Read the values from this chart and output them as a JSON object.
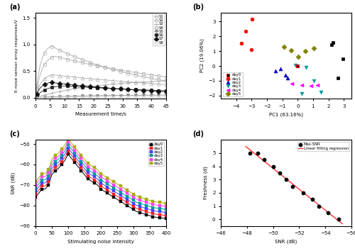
{
  "panel_labels": [
    "(a)",
    "(b)",
    "(c)",
    "(d)"
  ],
  "subplot_a": {
    "xlabel": "Measurement time/s",
    "ylabel": "E-nose sensor array responses/V",
    "xlim": [
      0,
      45
    ],
    "ylim": [
      -0.02,
      1.6
    ],
    "yticks": [
      0.0,
      0.5,
      1.0,
      1.5
    ],
    "xticks": [
      0,
      5,
      10,
      15,
      20,
      25,
      30,
      35,
      40,
      45
    ],
    "sensors": [
      "S1",
      "S2",
      "S3",
      "S4",
      "S5",
      "S6",
      "S7",
      "S8"
    ],
    "markers": [
      "o",
      "^",
      "+",
      "s",
      "v",
      "s",
      "D",
      "o"
    ],
    "open_markers": [
      "o",
      "^",
      "s",
      "o"
    ],
    "s1_params": [
      1.02,
      2.0,
      30
    ],
    "s4_params": [
      0.82,
      2.5,
      50
    ],
    "s2_params": [
      0.45,
      2.2,
      70
    ],
    "s7_params": [
      0.3,
      2.0,
      45
    ],
    "s6_params": [
      0.23,
      3.5,
      60
    ],
    "s3_final": 0.36,
    "s5_final": 0.05,
    "s8_final": 0.01
  },
  "subplot_b": {
    "xlabel": "PC1 (63.16%)",
    "ylabel": "PC2 (19.06%)",
    "xlim": [
      -5,
      3.5
    ],
    "ylim": [
      -2.2,
      3.6
    ],
    "xticks": [
      -4,
      -3,
      -2,
      -1,
      0,
      1,
      2,
      3
    ],
    "yticks": [
      -2,
      -1,
      0,
      1,
      2,
      3
    ],
    "days": [
      "day0",
      "day1",
      "day2",
      "day3",
      "day4",
      "day5"
    ],
    "day_colors": [
      "#000000",
      "#ff0000",
      "#0000cc",
      "#009999",
      "#ff00ff",
      "#808000"
    ],
    "day_markers": [
      "s",
      "o",
      "^",
      "v",
      "<",
      "D"
    ],
    "day0_pts": [
      [
        2.3,
        1.6
      ],
      [
        2.95,
        0.5
      ],
      [
        2.6,
        -0.8
      ],
      [
        2.2,
        1.42
      ]
    ],
    "day1_pts": [
      [
        -2.95,
        3.15
      ],
      [
        -3.4,
        2.35
      ],
      [
        -3.65,
        1.55
      ],
      [
        -3.0,
        1.1
      ]
    ],
    "day2_pts": [
      [
        -1.1,
        -0.2
      ],
      [
        -0.8,
        -0.6
      ],
      [
        -0.65,
        -0.8
      ],
      [
        -1.45,
        -0.35
      ]
    ],
    "day3_pts": [
      [
        -0.15,
        0.05
      ],
      [
        0.55,
        -0.1
      ],
      [
        1.05,
        -1.0
      ],
      [
        1.5,
        -1.75
      ],
      [
        0.25,
        -1.85
      ]
    ],
    "day4_pts": [
      [
        -0.4,
        -1.2
      ],
      [
        0.25,
        -1.3
      ],
      [
        0.85,
        -1.35
      ],
      [
        1.3,
        -1.3
      ]
    ],
    "day5_pts": [
      [
        -0.9,
        1.3
      ],
      [
        -0.45,
        1.05
      ],
      [
        0.05,
        0.6
      ],
      [
        0.5,
        1.0
      ],
      [
        1.05,
        1.2
      ]
    ]
  },
  "subplot_c": {
    "xlabel": "Stimulating noise intensity",
    "ylabel": "SNR (dB)",
    "xlim": [
      0,
      400
    ],
    "ylim": [
      -90,
      -48
    ],
    "xticks": [
      0,
      50,
      100,
      150,
      200,
      250,
      300,
      350,
      400
    ],
    "yticks": [
      -90,
      -80,
      -70,
      -60,
      -50
    ],
    "days": [
      "day0",
      "day1",
      "day2",
      "day3",
      "day4",
      "day5"
    ],
    "day_colors": [
      "#000000",
      "#ff2222",
      "#4444ff",
      "#009999",
      "#ff44ff",
      "#aaaa00"
    ],
    "base_snr_x": [
      0,
      10,
      20,
      30,
      40,
      50,
      60,
      70,
      80,
      90,
      100,
      110,
      120,
      130,
      140,
      150,
      160,
      170,
      180,
      190,
      200,
      210,
      220,
      230,
      240,
      250,
      260,
      270,
      280,
      290,
      300,
      310,
      320,
      330,
      340,
      350,
      360,
      370,
      380,
      390,
      400
    ],
    "base_snr_y": [
      -76,
      -74,
      -72,
      -72,
      -70,
      -65,
      -63,
      -62,
      -60,
      -58,
      -55,
      -57,
      -59,
      -61,
      -63,
      -65,
      -67,
      -68,
      -69,
      -70,
      -72,
      -73,
      -74,
      -75,
      -76,
      -77,
      -78,
      -79,
      -80,
      -81,
      -82,
      -83,
      -83.5,
      -84,
      -84.5,
      -85,
      -85.5,
      -85.8,
      -86,
      -86.2,
      -86.5
    ],
    "offsets": [
      0,
      1.5,
      3.0,
      4.5,
      6.0,
      7.5
    ]
  },
  "subplot_d": {
    "xlabel": "SNR (dB)",
    "ylabel": "Freshness (d)",
    "xlim": [
      -46,
      -56
    ],
    "ylim": [
      -0.5,
      6.0
    ],
    "xticks": [
      -46,
      -48,
      -50,
      -52,
      -54,
      -56
    ],
    "yticks": [
      0,
      1,
      2,
      3,
      4,
      5
    ],
    "scatter_x": [
      -55.0,
      -54.2,
      -53.5,
      -53.0,
      -52.3,
      -51.5,
      -51.0,
      -50.5,
      -50.0,
      -49.3,
      -48.8,
      -48.2
    ],
    "scatter_y": [
      0.0,
      0.5,
      1.0,
      1.5,
      2.0,
      2.5,
      3.0,
      3.5,
      4.0,
      4.5,
      5.0,
      5.0
    ],
    "line_color": "#ff3333",
    "scatter_color": "#000000",
    "legend_labels": [
      "Max-SNR",
      "Linear fitting regression"
    ]
  }
}
